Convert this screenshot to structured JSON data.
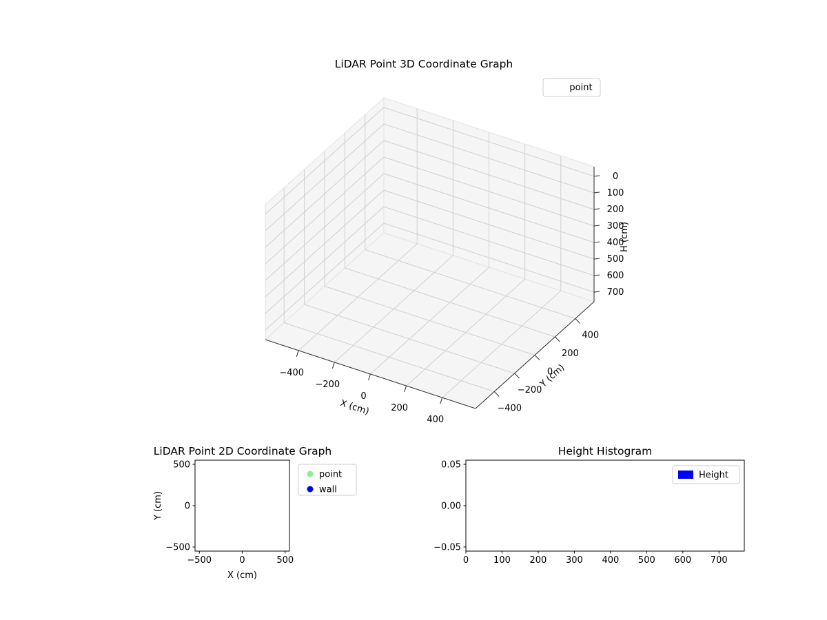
{
  "figure": {
    "background_color": "#ffffff",
    "text_color": "#000000"
  },
  "chart_data": [
    {
      "type": "scatter",
      "projection": "3d",
      "title": "LiDAR Point 3D Coordinate Graph",
      "xlabel": "X (cm)",
      "ylabel": "Y (cm)",
      "zlabel": "H (cm)",
      "xticks": [
        -400,
        -200,
        0,
        200,
        400
      ],
      "yticks": [
        -400,
        -200,
        0,
        200,
        400
      ],
      "zticks": [
        0,
        100,
        200,
        300,
        400,
        500,
        600,
        700
      ],
      "xlim": [
        -585,
        585
      ],
      "ylim": [
        -585,
        585
      ],
      "zlim": [
        -58,
        758
      ],
      "zaxis_inverted": true,
      "grid": true,
      "pane_color": "#f5f5f5",
      "grid_color": "#cfcfcf",
      "legend": {
        "position": "upper right",
        "entries": [
          {
            "label": "point",
            "marker": "none",
            "color": "#ffffff"
          }
        ]
      },
      "series": [
        {
          "name": "point",
          "points": []
        }
      ]
    },
    {
      "type": "scatter",
      "projection": "2d",
      "title": "LiDAR Point 2D Coordinate Graph",
      "xlabel": "X (cm)",
      "ylabel": "Y (cm)",
      "xticks": [
        -500,
        0,
        500
      ],
      "yticks": [
        -500,
        0,
        500
      ],
      "xlim": [
        -550,
        550
      ],
      "ylim": [
        -550,
        550
      ],
      "grid": false,
      "legend": {
        "position": "outside upper right",
        "entries": [
          {
            "label": "point",
            "marker": "circle",
            "color": "#90ee90"
          },
          {
            "label": "wall",
            "marker": "circle",
            "color": "#0000ff"
          }
        ]
      },
      "series": [
        {
          "name": "point",
          "points": []
        },
        {
          "name": "wall",
          "points": []
        }
      ]
    },
    {
      "type": "histogram",
      "projection": "2d",
      "title": "Height Histogram",
      "xlabel": "",
      "ylabel": "",
      "xticks": [
        0,
        100,
        200,
        300,
        400,
        500,
        600,
        700
      ],
      "yticks": [
        -0.05,
        0,
        0.05
      ],
      "yticklabels": [
        "−0.05",
        "0.00",
        "0.05"
      ],
      "xlim": [
        0,
        770
      ],
      "ylim": [
        -0.055,
        0.055
      ],
      "grid": false,
      "legend": {
        "position": "upper right",
        "entries": [
          {
            "label": "Height",
            "marker": "rect",
            "color": "#0000ff"
          }
        ]
      },
      "values": []
    }
  ]
}
